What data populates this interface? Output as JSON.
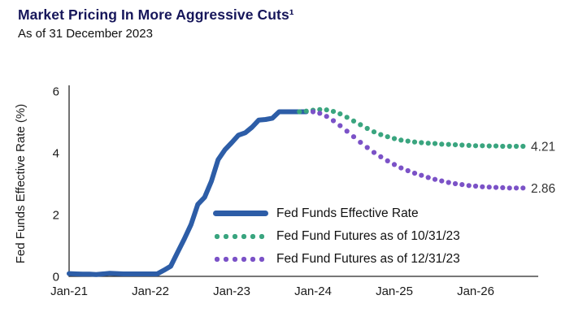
{
  "header": {
    "title": "Market Pricing In More Aggressive Cuts¹",
    "subtitle": "As of 31 December 2023"
  },
  "chart_data": {
    "type": "line",
    "title": "Market Pricing In More Aggressive Cuts",
    "subtitle": "As of 31 December 2023",
    "xlabel": "",
    "ylabel": "Fed Funds Effective Rate (%)",
    "ylim": [
      0,
      6
    ],
    "y_ticks": [
      0,
      2,
      4,
      6
    ],
    "x_ticks": [
      {
        "label": "Jan-21",
        "x": 2021.0
      },
      {
        "label": "Jan-22",
        "x": 2022.0
      },
      {
        "label": "Jan-23",
        "x": 2023.0
      },
      {
        "label": "Jan-24",
        "x": 2024.0
      },
      {
        "label": "Jan-25",
        "x": 2025.0
      },
      {
        "label": "Jan-26",
        "x": 2026.0
      }
    ],
    "interval": "monthly",
    "grid": "off",
    "legend_position": "inside-lower-right",
    "series": [
      {
        "name": "Fed Funds Effective Rate",
        "style": "solid",
        "color": "#2d5da7",
        "x_start": 2021.0,
        "values": [
          0.09,
          0.08,
          0.07,
          0.07,
          0.06,
          0.08,
          0.1,
          0.09,
          0.08,
          0.08,
          0.08,
          0.08,
          0.08,
          0.08,
          0.2,
          0.33,
          0.77,
          1.21,
          1.68,
          2.33,
          2.56,
          3.08,
          3.78,
          4.1,
          4.33,
          4.57,
          4.65,
          4.83,
          5.06,
          5.08,
          5.12,
          5.33,
          5.33,
          5.33,
          5.33,
          5.33
        ]
      },
      {
        "name": "Fed Fund Futures as of 10/31/23",
        "style": "dotted",
        "color": "#3aa57f",
        "x_start": 2023.8333,
        "end_label": "4.21",
        "values": [
          5.33,
          5.35,
          5.38,
          5.4,
          5.39,
          5.34,
          5.26,
          5.15,
          5.03,
          4.91,
          4.79,
          4.68,
          4.59,
          4.52,
          4.46,
          4.41,
          4.38,
          4.35,
          4.33,
          4.31,
          4.3,
          4.28,
          4.27,
          4.26,
          4.25,
          4.24,
          4.23,
          4.23,
          4.22,
          4.22,
          4.21,
          4.21,
          4.21,
          4.21
        ]
      },
      {
        "name": "Fed Fund Futures as of 12/31/23",
        "style": "dotted",
        "color": "#7b52c7",
        "x_start": 2024.0,
        "end_label": "2.86",
        "values": [
          5.33,
          5.28,
          5.18,
          5.04,
          4.88,
          4.7,
          4.52,
          4.34,
          4.17,
          4.01,
          3.87,
          3.74,
          3.62,
          3.51,
          3.42,
          3.34,
          3.27,
          3.2,
          3.14,
          3.09,
          3.04,
          3.0,
          2.97,
          2.94,
          2.92,
          2.9,
          2.89,
          2.88,
          2.87,
          2.86,
          2.86,
          2.86
        ]
      }
    ],
    "annotations": [
      {
        "text": "4.21",
        "x": 2026.64,
        "y": 4.21,
        "color": "#333333"
      },
      {
        "text": "2.86",
        "x": 2026.64,
        "y": 2.86,
        "color": "#333333"
      }
    ]
  }
}
